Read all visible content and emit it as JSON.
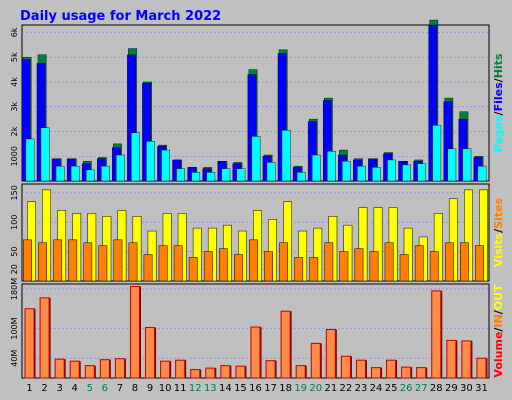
{
  "title": "Daily usage for March 2022",
  "colors": {
    "background": "#c0c0c0",
    "border": "#000000",
    "title": "#0000ff",
    "tick_text": "#000000",
    "weekday_day": "#000000",
    "weekend_day": "#008040",
    "pages": "#00ffff",
    "files": "#0000ff",
    "hits": "#008040",
    "visits": "#ffff00",
    "sites": "#ff8000",
    "kbin": "#ff8000",
    "kbout": "#ffff00",
    "volume": "#ff0000",
    "bar_outline": "#000000",
    "gridline": "#8080ff"
  },
  "chart_data": [
    {
      "type": "bar",
      "panel": "hits-files-pages",
      "title": "",
      "x": [
        "1",
        "2",
        "3",
        "4",
        "5",
        "6",
        "7",
        "8",
        "9",
        "10",
        "11",
        "12",
        "13",
        "14",
        "15",
        "16",
        "17",
        "18",
        "19",
        "20",
        "21",
        "22",
        "23",
        "24",
        "25",
        "26",
        "27",
        "28",
        "29",
        "30",
        "31"
      ],
      "weekend_days": [
        "5",
        "6",
        "12",
        "13",
        "19",
        "20",
        "26",
        "27"
      ],
      "ylabel": "Pages / Files / Hits",
      "ylabel_parts": [
        {
          "text": "Pages",
          "color_key": "pages"
        },
        {
          "text": "/",
          "color_key": "tick_text"
        },
        {
          "text": "Files",
          "color_key": "files"
        },
        {
          "text": "/",
          "color_key": "tick_text"
        },
        {
          "text": "Hits",
          "color_key": "hits"
        }
      ],
      "yticks": [
        "1000",
        "2k",
        "3k",
        "4k",
        "5k",
        "6k"
      ],
      "ytick_values": [
        1000,
        2000,
        3000,
        4000,
        5000,
        6000
      ],
      "ylim": [
        0,
        6300
      ],
      "grid": true,
      "series": [
        {
          "name": "Hits",
          "color_key": "hits",
          "values": [
            5000,
            5100,
            900,
            900,
            800,
            950,
            1500,
            5350,
            4000,
            1450,
            850,
            550,
            550,
            800,
            750,
            4500,
            1050,
            5300,
            600,
            2500,
            3350,
            1250,
            900,
            900,
            1150,
            800,
            850,
            6500,
            3350,
            2800,
            1000
          ]
        },
        {
          "name": "Files",
          "color_key": "files",
          "values": [
            4900,
            4750,
            900,
            900,
            700,
            900,
            1350,
            5100,
            3950,
            1400,
            850,
            550,
            500,
            800,
            700,
            4300,
            1000,
            5150,
            550,
            2400,
            3250,
            1050,
            850,
            900,
            1100,
            800,
            800,
            6300,
            3200,
            2500,
            950
          ]
        },
        {
          "name": "Pages",
          "color_key": "pages",
          "values": [
            1700,
            2150,
            600,
            600,
            450,
            600,
            1050,
            1950,
            1600,
            1250,
            500,
            350,
            350,
            500,
            500,
            1800,
            750,
            2050,
            350,
            1050,
            1200,
            800,
            600,
            550,
            850,
            650,
            700,
            2250,
            1300,
            1300,
            600
          ]
        }
      ]
    },
    {
      "type": "bar",
      "panel": "visits-sites",
      "title": "",
      "x": [
        "1",
        "2",
        "3",
        "4",
        "5",
        "6",
        "7",
        "8",
        "9",
        "10",
        "11",
        "12",
        "13",
        "14",
        "15",
        "16",
        "17",
        "18",
        "19",
        "20",
        "21",
        "22",
        "23",
        "24",
        "25",
        "26",
        "27",
        "28",
        "29",
        "30",
        "31"
      ],
      "ylabel": "Visits / Sites",
      "ylabel_parts": [
        {
          "text": "Visits",
          "color_key": "visits"
        },
        {
          "text": "/",
          "color_key": "tick_text"
        },
        {
          "text": "Sites",
          "color_key": "sites"
        }
      ],
      "yticks": [
        "20",
        "50",
        "100",
        "150"
      ],
      "ytick_values": [
        20,
        50,
        100,
        150
      ],
      "ylim": [
        0,
        165
      ],
      "grid": true,
      "series": [
        {
          "name": "Visits",
          "color_key": "visits",
          "values": [
            135,
            155,
            120,
            115,
            115,
            110,
            120,
            110,
            85,
            115,
            115,
            90,
            90,
            95,
            85,
            120,
            105,
            135,
            85,
            90,
            110,
            95,
            125,
            125,
            125,
            90,
            75,
            115,
            140,
            155,
            155
          ]
        },
        {
          "name": "Sites",
          "color_key": "sites",
          "values": [
            70,
            65,
            70,
            70,
            65,
            60,
            70,
            65,
            45,
            60,
            60,
            40,
            50,
            55,
            45,
            70,
            50,
            65,
            40,
            40,
            65,
            50,
            55,
            50,
            65,
            45,
            60,
            50,
            65,
            65,
            60
          ]
        }
      ]
    },
    {
      "type": "bar",
      "panel": "volume",
      "title": "",
      "x": [
        "1",
        "2",
        "3",
        "4",
        "5",
        "6",
        "7",
        "8",
        "9",
        "10",
        "11",
        "12",
        "13",
        "14",
        "15",
        "16",
        "17",
        "18",
        "19",
        "20",
        "21",
        "22",
        "23",
        "24",
        "25",
        "26",
        "27",
        "28",
        "29",
        "30",
        "31"
      ],
      "ylabel": "Volume / IN / OUT",
      "ylabel_parts": [
        {
          "text": "Volume",
          "color_key": "volume"
        },
        {
          "text": "/",
          "color_key": "tick_text"
        },
        {
          "text": "IN",
          "color_key": "kbin"
        },
        {
          "text": "/",
          "color_key": "tick_text"
        },
        {
          "text": "OUT",
          "color_key": "kbout"
        }
      ],
      "yticks": [
        "40M",
        "100M",
        "180M"
      ],
      "ytick_values": [
        40,
        100,
        180
      ],
      "ylim": [
        0,
        190
      ],
      "grid": true,
      "series": [
        {
          "name": "Volume",
          "color_key": "volume",
          "values": [
            140,
            162,
            38,
            34,
            25,
            37,
            39,
            185,
            102,
            34,
            36,
            17,
            20,
            25,
            24,
            103,
            35,
            135,
            25,
            70,
            98,
            44,
            36,
            21,
            36,
            22,
            21,
            176,
            76,
            75,
            40
          ]
        }
      ]
    }
  ]
}
